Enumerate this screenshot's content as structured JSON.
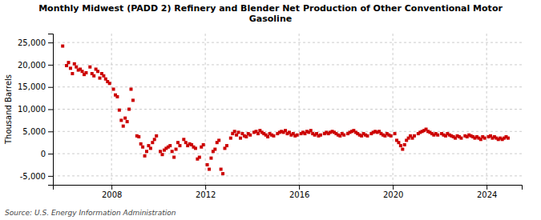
{
  "chart_data": {
    "type": "scatter",
    "title": "Monthly Midwest (PADD 2) Refinery and Blender Net Production of Other Conventional Motor\nGasoline",
    "y_label": "Thousand Barrels",
    "annotations": [
      "Source: U.S. Energy Information Administration"
    ],
    "color": "#cc0000",
    "marker": "square",
    "grid": true,
    "xlim": [
      2005.5,
      2025.5
    ],
    "xticks": [
      2008,
      2012,
      2016,
      2020,
      2024
    ],
    "ylim": [
      -7000,
      27000
    ],
    "yticks": [
      {
        "value": -5000,
        "label": "-5,000"
      },
      0,
      {
        "value": 5000,
        "label": "5,000"
      },
      {
        "value": 10000,
        "label": "10,000"
      },
      {
        "value": 15000,
        "label": "15,000"
      },
      {
        "value": 20000,
        "label": "20,000"
      },
      {
        "value": 25000,
        "label": "25,000"
      }
    ],
    "x": [
      2005.917,
      2006.083,
      2006.167,
      2006.25,
      2006.333,
      2006.417,
      2006.5,
      2006.583,
      2006.667,
      2006.75,
      2006.833,
      2006.917,
      2007.083,
      2007.167,
      2007.25,
      2007.333,
      2007.417,
      2007.5,
      2007.583,
      2007.667,
      2007.75,
      2007.833,
      2007.917,
      2008.083,
      2008.167,
      2008.25,
      2008.333,
      2008.417,
      2008.5,
      2008.583,
      2008.667,
      2008.75,
      2008.833,
      2008.917,
      2009.083,
      2009.167,
      2009.25,
      2009.333,
      2009.417,
      2009.5,
      2009.583,
      2009.667,
      2009.75,
      2009.833,
      2009.917,
      2010.083,
      2010.167,
      2010.25,
      2010.333,
      2010.417,
      2010.5,
      2010.583,
      2010.667,
      2010.75,
      2010.833,
      2010.917,
      2011.083,
      2011.167,
      2011.25,
      2011.333,
      2011.417,
      2011.5,
      2011.583,
      2011.667,
      2011.75,
      2011.833,
      2011.917,
      2012.083,
      2012.167,
      2012.25,
      2012.333,
      2012.417,
      2012.5,
      2012.583,
      2012.667,
      2012.75,
      2012.833,
      2012.917,
      2013.083,
      2013.167,
      2013.25,
      2013.333,
      2013.417,
      2013.5,
      2013.583,
      2013.667,
      2013.75,
      2013.833,
      2013.917,
      2014.083,
      2014.167,
      2014.25,
      2014.333,
      2014.417,
      2014.5,
      2014.583,
      2014.667,
      2014.75,
      2014.833,
      2014.917,
      2015.083,
      2015.167,
      2015.25,
      2015.333,
      2015.417,
      2015.5,
      2015.583,
      2015.667,
      2015.75,
      2015.833,
      2015.917,
      2016.083,
      2016.167,
      2016.25,
      2016.333,
      2016.417,
      2016.5,
      2016.583,
      2016.667,
      2016.75,
      2016.833,
      2016.917,
      2017.083,
      2017.167,
      2017.25,
      2017.333,
      2017.417,
      2017.5,
      2017.583,
      2017.667,
      2017.75,
      2017.833,
      2017.917,
      2018.083,
      2018.167,
      2018.25,
      2018.333,
      2018.417,
      2018.5,
      2018.583,
      2018.667,
      2018.75,
      2018.833,
      2018.917,
      2019.083,
      2019.167,
      2019.25,
      2019.333,
      2019.417,
      2019.5,
      2019.583,
      2019.667,
      2019.75,
      2019.833,
      2019.917,
      2020.083,
      2020.167,
      2020.25,
      2020.333,
      2020.417,
      2020.5,
      2020.583,
      2020.667,
      2020.75,
      2020.833,
      2020.917,
      2021.083,
      2021.167,
      2021.25,
      2021.333,
      2021.417,
      2021.5,
      2021.583,
      2021.667,
      2021.75,
      2021.833,
      2021.917,
      2022.083,
      2022.167,
      2022.25,
      2022.333,
      2022.417,
      2022.5,
      2022.583,
      2022.667,
      2022.75,
      2022.833,
      2022.917,
      2023.083,
      2023.167,
      2023.25,
      2023.333,
      2023.417,
      2023.5,
      2023.583,
      2023.667,
      2023.75,
      2023.833,
      2023.917,
      2024.083,
      2024.167,
      2024.25,
      2024.333,
      2024.417,
      2024.5,
      2024.583,
      2024.667,
      2024.75,
      2024.833,
      2024.917
    ],
    "values": [
      24200,
      19800,
      20500,
      19200,
      18000,
      20200,
      19500,
      18800,
      19000,
      18500,
      17800,
      18200,
      19500,
      18000,
      17500,
      19000,
      18500,
      17000,
      18000,
      17500,
      16800,
      16200,
      15800,
      14500,
      13200,
      12800,
      9800,
      7500,
      6200,
      8000,
      7200,
      10000,
      14500,
      12000,
      4000,
      3800,
      2200,
      1500,
      -500,
      500,
      1800,
      1200,
      2500,
      3200,
      4000,
      500,
      -200,
      800,
      1200,
      1500,
      1800,
      500,
      -800,
      1000,
      2500,
      1800,
      3200,
      2500,
      1800,
      2200,
      2000,
      1500,
      1200,
      -1200,
      -800,
      1500,
      2000,
      -2500,
      -3500,
      -1000,
      500,
      1000,
      2500,
      3000,
      -3500,
      -4500,
      1200,
      1800,
      3500,
      4500,
      5000,
      4200,
      4800,
      3500,
      4500,
      4000,
      3800,
      4500,
      4200,
      4800,
      5000,
      4500,
      5200,
      4800,
      4500,
      4200,
      3800,
      4500,
      4200,
      4000,
      4500,
      4800,
      5000,
      4800,
      5200,
      4500,
      4800,
      4200,
      4500,
      4000,
      4200,
      4500,
      4800,
      4500,
      5000,
      4800,
      5200,
      4500,
      4200,
      4500,
      4000,
      4200,
      4500,
      4800,
      4500,
      4800,
      5000,
      4800,
      4500,
      4200,
      4000,
      4500,
      4200,
      4500,
      4800,
      5000,
      5200,
      4800,
      4500,
      4200,
      4000,
      4500,
      4200,
      4000,
      4500,
      4800,
      5000,
      4800,
      5000,
      4500,
      4200,
      4000,
      4500,
      4200,
      4000,
      4500,
      3000,
      2500,
      1800,
      1000,
      2000,
      3000,
      3500,
      4000,
      3500,
      4000,
      4500,
      4800,
      5000,
      5200,
      5500,
      5000,
      4800,
      4500,
      4200,
      4500,
      4200,
      4500,
      4200,
      4000,
      4500,
      4200,
      4000,
      3800,
      3500,
      4000,
      3800,
      3500,
      4000,
      3800,
      4200,
      4000,
      3800,
      3500,
      3800,
      3500,
      3200,
      3800,
      3500,
      3800,
      4000,
      3500,
      3800,
      3500,
      3200,
      3500,
      3200,
      3500,
      3800,
      3500
    ]
  }
}
